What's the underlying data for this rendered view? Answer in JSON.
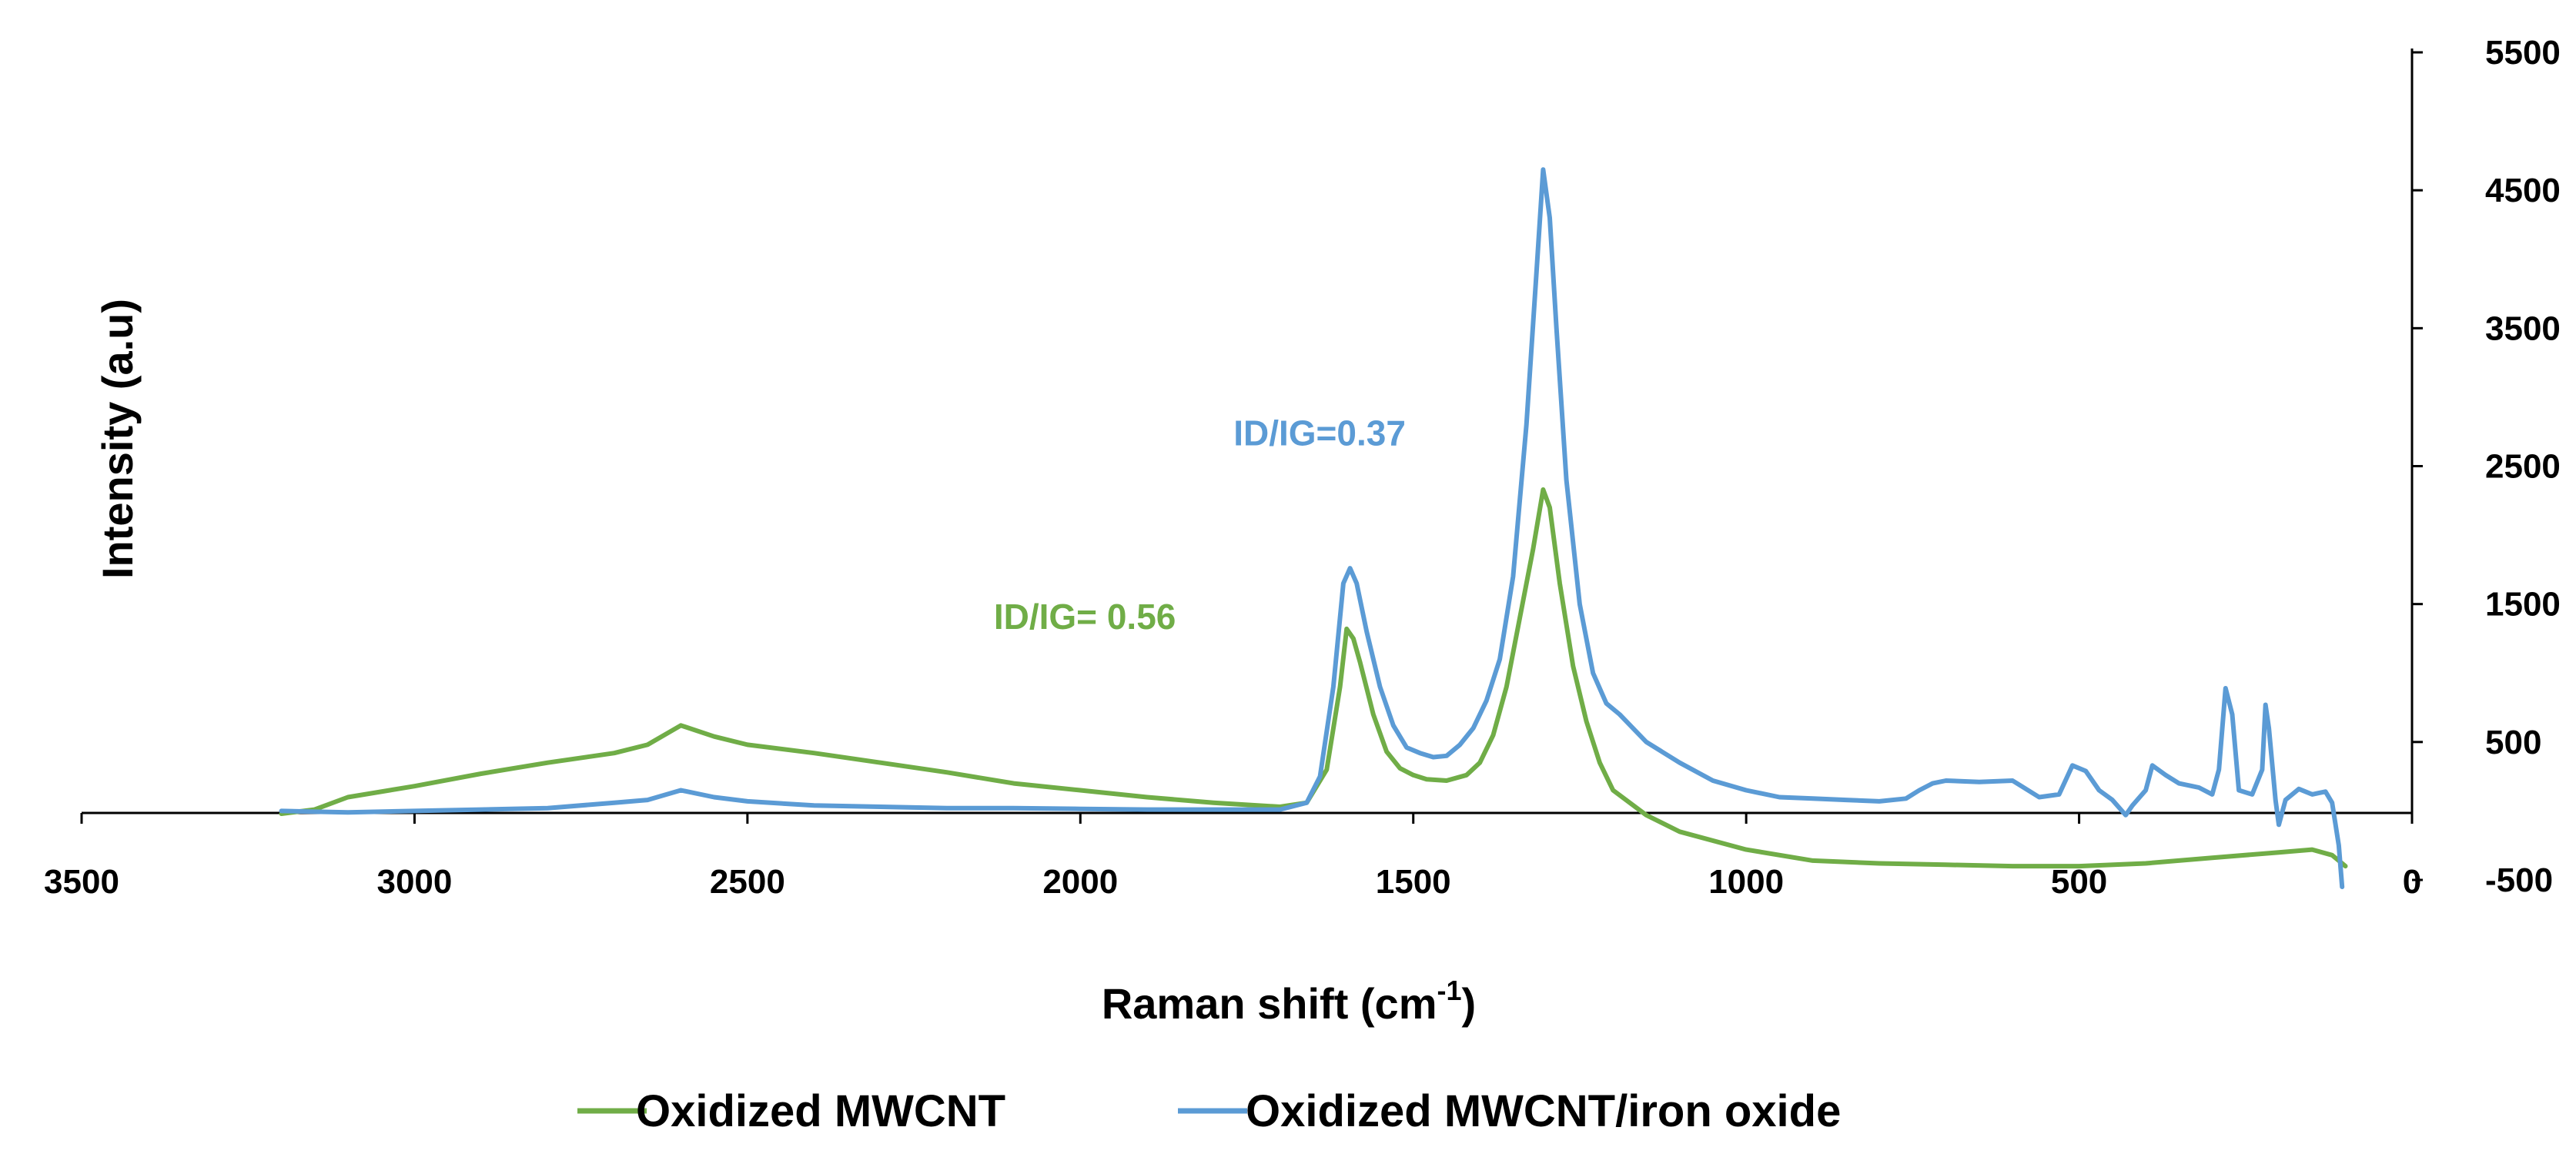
{
  "chart_data": {
    "type": "line",
    "title": "",
    "xlabel_main": "Raman shift (cm",
    "xlabel_sup": "-1",
    "xlabel_close": ")",
    "ylabel": "Intensity (a.u)",
    "xlim": [
      3500,
      0
    ],
    "ylim": [
      -500,
      5500
    ],
    "x_reversed": true,
    "grid": false,
    "legend_position": "bottom-center",
    "x_ticks": [
      3500,
      3000,
      2500,
      2000,
      1500,
      1000,
      500,
      0
    ],
    "x_tick_labels": [
      "3500",
      "3000",
      "2500",
      "2000",
      "1500",
      "1000",
      "500",
      "0"
    ],
    "y_ticks": [
      5500,
      4500,
      3500,
      2500,
      1500,
      500,
      -500
    ],
    "y_tick_labels": [
      "5500",
      "4500",
      "3500",
      "2500",
      "1500",
      "500",
      "-500"
    ],
    "y_axis_side": "right",
    "series": [
      {
        "name": "Oxidized MWCNT",
        "color": "#70AD47",
        "points": [
          [
            3200,
            -20
          ],
          [
            3150,
            10
          ],
          [
            3100,
            100
          ],
          [
            3000,
            180
          ],
          [
            2900,
            270
          ],
          [
            2800,
            350
          ],
          [
            2700,
            420
          ],
          [
            2650,
            480
          ],
          [
            2600,
            620
          ],
          [
            2550,
            540
          ],
          [
            2500,
            480
          ],
          [
            2400,
            420
          ],
          [
            2300,
            350
          ],
          [
            2200,
            280
          ],
          [
            2100,
            200
          ],
          [
            2000,
            150
          ],
          [
            1900,
            100
          ],
          [
            1800,
            60
          ],
          [
            1700,
            30
          ],
          [
            1660,
            60
          ],
          [
            1630,
            300
          ],
          [
            1610,
            900
          ],
          [
            1600,
            1320
          ],
          [
            1590,
            1250
          ],
          [
            1580,
            1080
          ],
          [
            1560,
            700
          ],
          [
            1540,
            430
          ],
          [
            1520,
            310
          ],
          [
            1500,
            260
          ],
          [
            1480,
            230
          ],
          [
            1450,
            220
          ],
          [
            1420,
            260
          ],
          [
            1400,
            350
          ],
          [
            1380,
            550
          ],
          [
            1360,
            900
          ],
          [
            1340,
            1400
          ],
          [
            1320,
            1900
          ],
          [
            1305,
            2330
          ],
          [
            1295,
            2200
          ],
          [
            1280,
            1650
          ],
          [
            1260,
            1050
          ],
          [
            1240,
            650
          ],
          [
            1220,
            350
          ],
          [
            1200,
            150
          ],
          [
            1150,
            -30
          ],
          [
            1100,
            -150
          ],
          [
            1000,
            -280
          ],
          [
            900,
            -360
          ],
          [
            800,
            -380
          ],
          [
            700,
            -390
          ],
          [
            600,
            -400
          ],
          [
            500,
            -400
          ],
          [
            400,
            -380
          ],
          [
            300,
            -340
          ],
          [
            200,
            -300
          ],
          [
            150,
            -280
          ],
          [
            120,
            -320
          ],
          [
            100,
            -400
          ]
        ]
      },
      {
        "name": "Oxidized MWCNT/iron oxide",
        "color": "#5B9BD5",
        "points": [
          [
            3200,
            0
          ],
          [
            3100,
            -10
          ],
          [
            3000,
            0
          ],
          [
            2900,
            10
          ],
          [
            2800,
            20
          ],
          [
            2700,
            60
          ],
          [
            2650,
            80
          ],
          [
            2600,
            150
          ],
          [
            2550,
            100
          ],
          [
            2500,
            70
          ],
          [
            2400,
            40
          ],
          [
            2300,
            30
          ],
          [
            2200,
            20
          ],
          [
            2100,
            20
          ],
          [
            2000,
            15
          ],
          [
            1900,
            10
          ],
          [
            1800,
            10
          ],
          [
            1700,
            10
          ],
          [
            1660,
            60
          ],
          [
            1640,
            250
          ],
          [
            1620,
            900
          ],
          [
            1605,
            1650
          ],
          [
            1595,
            1760
          ],
          [
            1585,
            1650
          ],
          [
            1570,
            1300
          ],
          [
            1550,
            900
          ],
          [
            1530,
            620
          ],
          [
            1510,
            460
          ],
          [
            1490,
            420
          ],
          [
            1470,
            390
          ],
          [
            1450,
            400
          ],
          [
            1430,
            480
          ],
          [
            1410,
            600
          ],
          [
            1390,
            800
          ],
          [
            1370,
            1100
          ],
          [
            1350,
            1700
          ],
          [
            1330,
            2800
          ],
          [
            1315,
            3900
          ],
          [
            1305,
            4650
          ],
          [
            1295,
            4300
          ],
          [
            1285,
            3500
          ],
          [
            1270,
            2400
          ],
          [
            1250,
            1500
          ],
          [
            1230,
            1000
          ],
          [
            1210,
            780
          ],
          [
            1190,
            700
          ],
          [
            1170,
            600
          ],
          [
            1150,
            500
          ],
          [
            1100,
            350
          ],
          [
            1050,
            220
          ],
          [
            1000,
            150
          ],
          [
            950,
            100
          ],
          [
            900,
            90
          ],
          [
            850,
            80
          ],
          [
            800,
            70
          ],
          [
            760,
            90
          ],
          [
            740,
            150
          ],
          [
            720,
            200
          ],
          [
            700,
            220
          ],
          [
            650,
            210
          ],
          [
            600,
            220
          ],
          [
            560,
            100
          ],
          [
            530,
            120
          ],
          [
            510,
            330
          ],
          [
            490,
            290
          ],
          [
            470,
            150
          ],
          [
            450,
            80
          ],
          [
            430,
            -30
          ],
          [
            420,
            40
          ],
          [
            400,
            150
          ],
          [
            390,
            330
          ],
          [
            370,
            260
          ],
          [
            350,
            200
          ],
          [
            330,
            180
          ],
          [
            320,
            170
          ],
          [
            300,
            120
          ],
          [
            290,
            300
          ],
          [
            280,
            890
          ],
          [
            270,
            700
          ],
          [
            260,
            150
          ],
          [
            240,
            120
          ],
          [
            225,
            300
          ],
          [
            220,
            770
          ],
          [
            215,
            600
          ],
          [
            205,
            80
          ],
          [
            200,
            -100
          ],
          [
            190,
            80
          ],
          [
            170,
            160
          ],
          [
            160,
            140
          ],
          [
            150,
            120
          ],
          [
            140,
            130
          ],
          [
            130,
            140
          ],
          [
            120,
            60
          ],
          [
            110,
            -250
          ],
          [
            105,
            -550
          ]
        ]
      }
    ],
    "annotations": [
      {
        "text": "ID/IG=0.37",
        "x": 1770,
        "y": 2650,
        "color": "#5B9BD5"
      },
      {
        "text": "ID/IG= 0.56",
        "x": 2130,
        "y": 1320,
        "color": "#70AD47"
      }
    ]
  }
}
